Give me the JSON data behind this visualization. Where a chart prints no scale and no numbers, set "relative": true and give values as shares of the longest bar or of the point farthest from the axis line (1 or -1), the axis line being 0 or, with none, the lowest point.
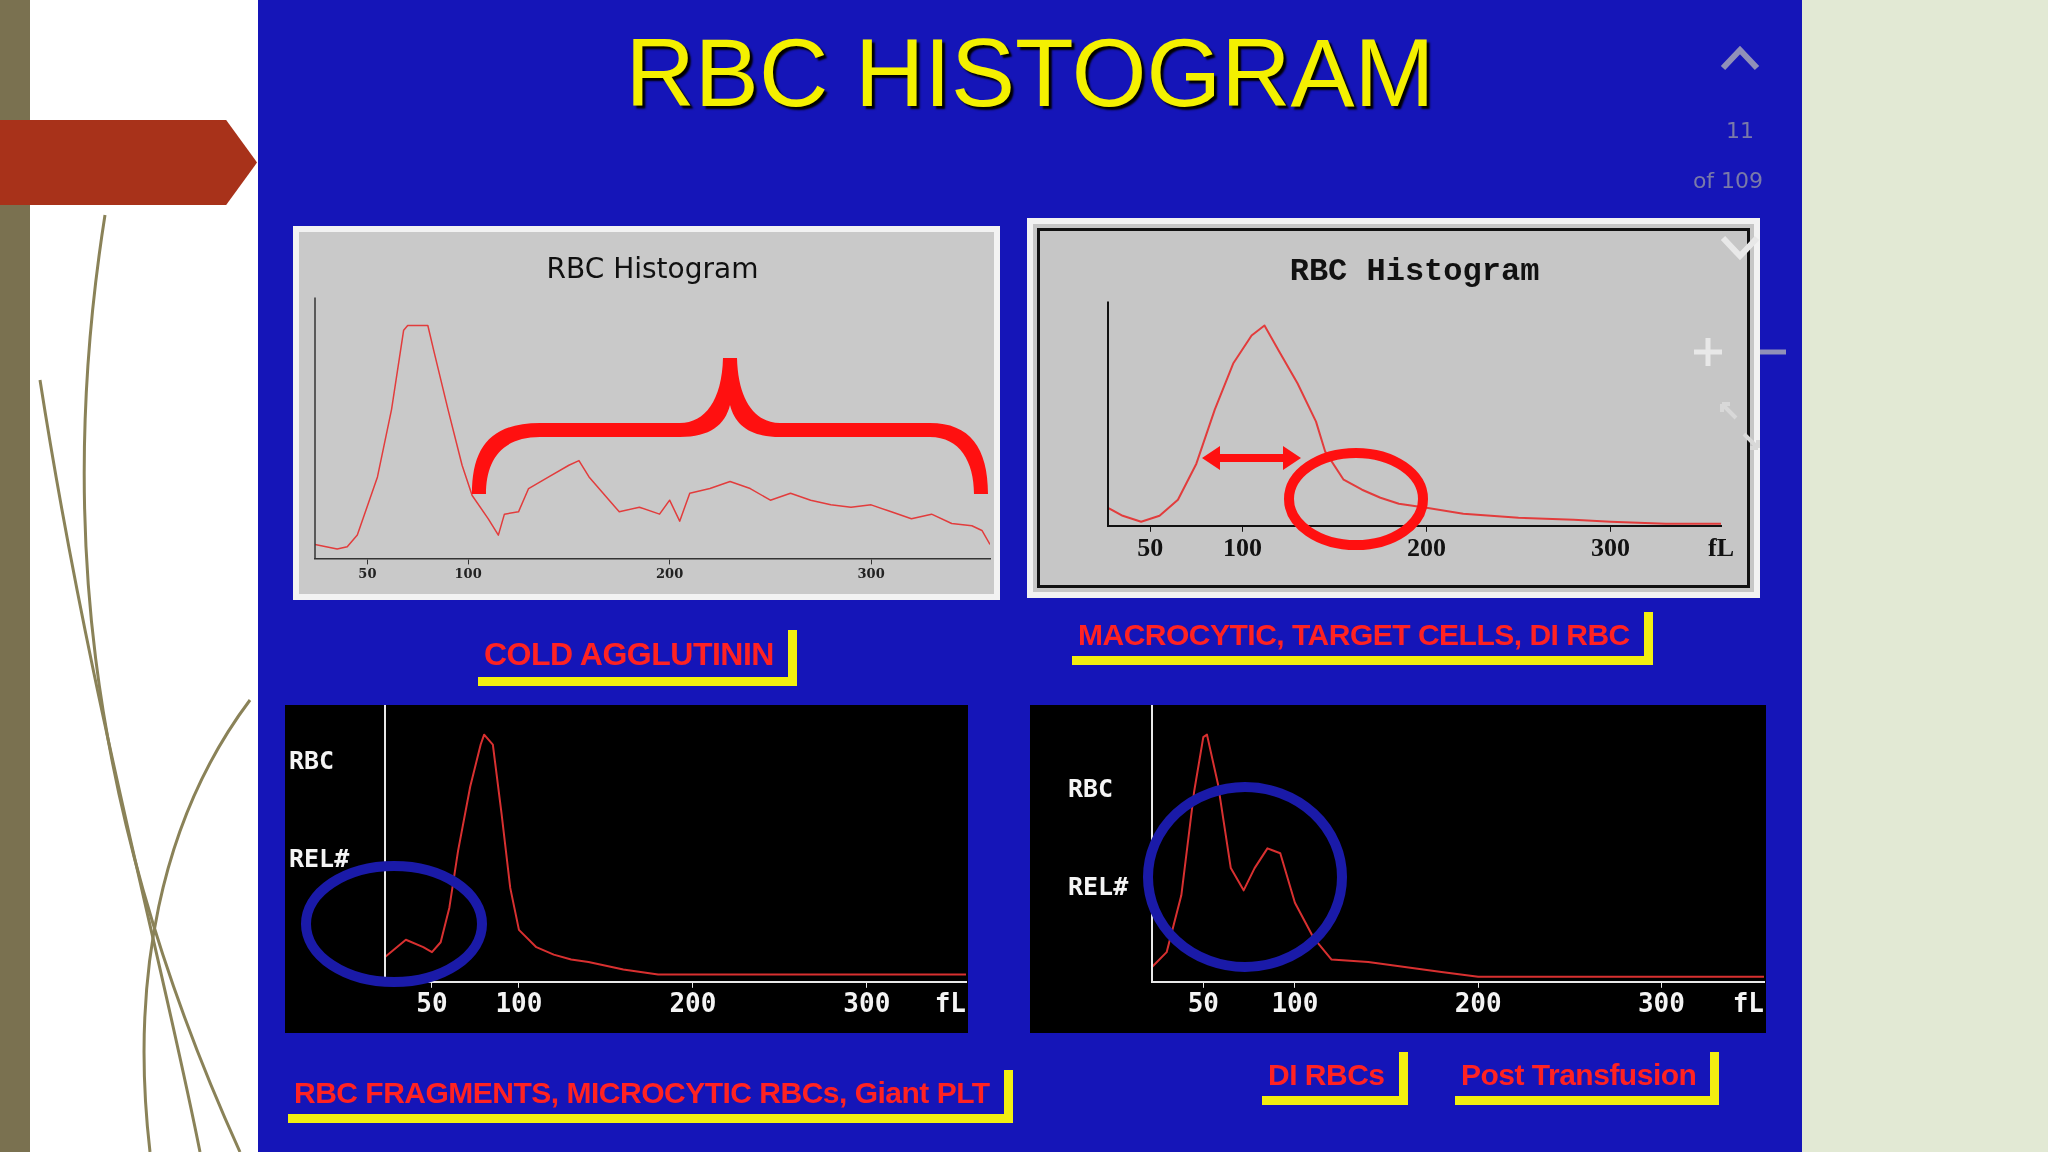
{
  "chart_data": [
    {
      "type": "other",
      "title": "RBC HISTOGRAM",
      "annotations": [
        "11",
        "of 109"
      ]
    },
    {
      "type": "line",
      "title": "RBC Histogram",
      "relative": true,
      "tick_labels": "x",
      "color": "#e23c3c",
      "xlim": [
        24,
        359
      ],
      "xticks": [
        50,
        100,
        200,
        300
      ],
      "annotations": [
        "COLD AGGLUTININ"
      ],
      "x": [
        24,
        35,
        40,
        45,
        55,
        62,
        68,
        70,
        80,
        83,
        90,
        97,
        102,
        110,
        115,
        118,
        125,
        130,
        140,
        150,
        155,
        160,
        170,
        175,
        185,
        195,
        200,
        205,
        210,
        220,
        230,
        240,
        250,
        260,
        270,
        280,
        290,
        300,
        310,
        320,
        330,
        340,
        350,
        355,
        359
      ],
      "values": [
        0.06,
        0.04,
        0.05,
        0.1,
        0.35,
        0.64,
        0.98,
        1,
        1,
        0.89,
        0.64,
        0.4,
        0.27,
        0.17,
        0.1,
        0.19,
        0.2,
        0.3,
        0.35,
        0.4,
        0.42,
        0.35,
        0.25,
        0.2,
        0.22,
        0.19,
        0.25,
        0.16,
        0.28,
        0.3,
        0.33,
        0.3,
        0.25,
        0.28,
        0.25,
        0.23,
        0.22,
        0.23,
        0.2,
        0.17,
        0.19,
        0.15,
        0.14,
        0.12,
        0.06
      ]
    },
    {
      "type": "line",
      "title": "RBC Histogram",
      "xlabel": "fL",
      "relative": true,
      "tick_labels": "x",
      "color": "#e23c3c",
      "xlim": [
        27,
        360
      ],
      "xticks": [
        50,
        100,
        200,
        300
      ],
      "annotations": [
        "MACROCYTIC, TARGET CELLS, DI RBC"
      ],
      "x": [
        27,
        35,
        45,
        55,
        65,
        75,
        85,
        95,
        105,
        112,
        120,
        130,
        140,
        145,
        155,
        165,
        175,
        185,
        200,
        220,
        250,
        280,
        300,
        330,
        360
      ],
      "values": [
        0.09,
        0.05,
        0.02,
        0.05,
        0.13,
        0.31,
        0.58,
        0.81,
        0.95,
        1,
        0.87,
        0.71,
        0.52,
        0.37,
        0.23,
        0.18,
        0.14,
        0.11,
        0.09,
        0.06,
        0.04,
        0.03,
        0.02,
        0.01,
        0.01
      ]
    },
    {
      "type": "line",
      "xlabel": "fL",
      "ylabel": "RBC REL#",
      "relative": true,
      "tick_labels": "x",
      "color": "#d83030",
      "xlim": [
        23,
        357
      ],
      "xticks": [
        50,
        100,
        200,
        300
      ],
      "annotations": [
        "RBC FRAGMENTS, MICROCYTIC RBCs, Giant PLT"
      ],
      "x": [
        23,
        35,
        45,
        50,
        55,
        60,
        65,
        72,
        78,
        80,
        85,
        90,
        95,
        100,
        110,
        120,
        130,
        140,
        160,
        180,
        200,
        250,
        357
      ],
      "values": [
        0.1,
        0.17,
        0.14,
        0.12,
        0.16,
        0.3,
        0.53,
        0.79,
        0.96,
        1,
        0.96,
        0.68,
        0.38,
        0.21,
        0.14,
        0.11,
        0.09,
        0.08,
        0.05,
        0.03,
        0.03,
        0.03,
        0.03
      ]
    },
    {
      "type": "line",
      "xlabel": "fL",
      "ylabel": "RBC REL#",
      "relative": true,
      "tick_labels": "x",
      "color": "#d83030",
      "xlim": [
        22,
        356
      ],
      "xticks": [
        50,
        100,
        200,
        300
      ],
      "annotations": [
        "DI RBCs",
        "Post Transfusion"
      ],
      "x": [
        22,
        30,
        38,
        45,
        50,
        52,
        58,
        65,
        72,
        78,
        85,
        92,
        100,
        110,
        120,
        140,
        160,
        180,
        200,
        250,
        356
      ],
      "values": [
        0.06,
        0.12,
        0.35,
        0.77,
        0.99,
        1,
        0.8,
        0.46,
        0.37,
        0.46,
        0.54,
        0.52,
        0.32,
        0.18,
        0.09,
        0.08,
        0.06,
        0.04,
        0.02,
        0.02,
        0.02
      ]
    }
  ]
}
